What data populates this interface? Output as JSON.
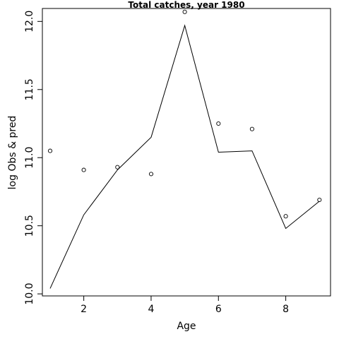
{
  "chart_data": {
    "type": "line",
    "title": "Total catches, year 1980",
    "xlabel": "Age",
    "ylabel": "log Obs & pred",
    "xlim": [
      0.77,
      9.33
    ],
    "ylim": [
      9.985,
      12.095
    ],
    "x_ticks": [
      2,
      4,
      6,
      8
    ],
    "x_tick_labels": [
      "2",
      "4",
      "6",
      "8"
    ],
    "y_ticks": [
      10.0,
      10.5,
      11.0,
      11.5,
      12.0
    ],
    "y_tick_labels": [
      "10.0",
      "10.5",
      "11.0",
      "11.5",
      "12.0"
    ],
    "grid": false,
    "legend": "none",
    "x": [
      1,
      2,
      3,
      4,
      5,
      6,
      7,
      8,
      9
    ],
    "series": [
      {
        "style": "points",
        "values": [
          11.05,
          10.91,
          10.93,
          10.88,
          12.07,
          11.25,
          11.21,
          10.57,
          10.69
        ]
      },
      {
        "style": "line",
        "values": [
          10.04,
          10.58,
          10.91,
          11.15,
          11.97,
          11.04,
          11.05,
          10.48,
          10.68
        ]
      }
    ]
  }
}
